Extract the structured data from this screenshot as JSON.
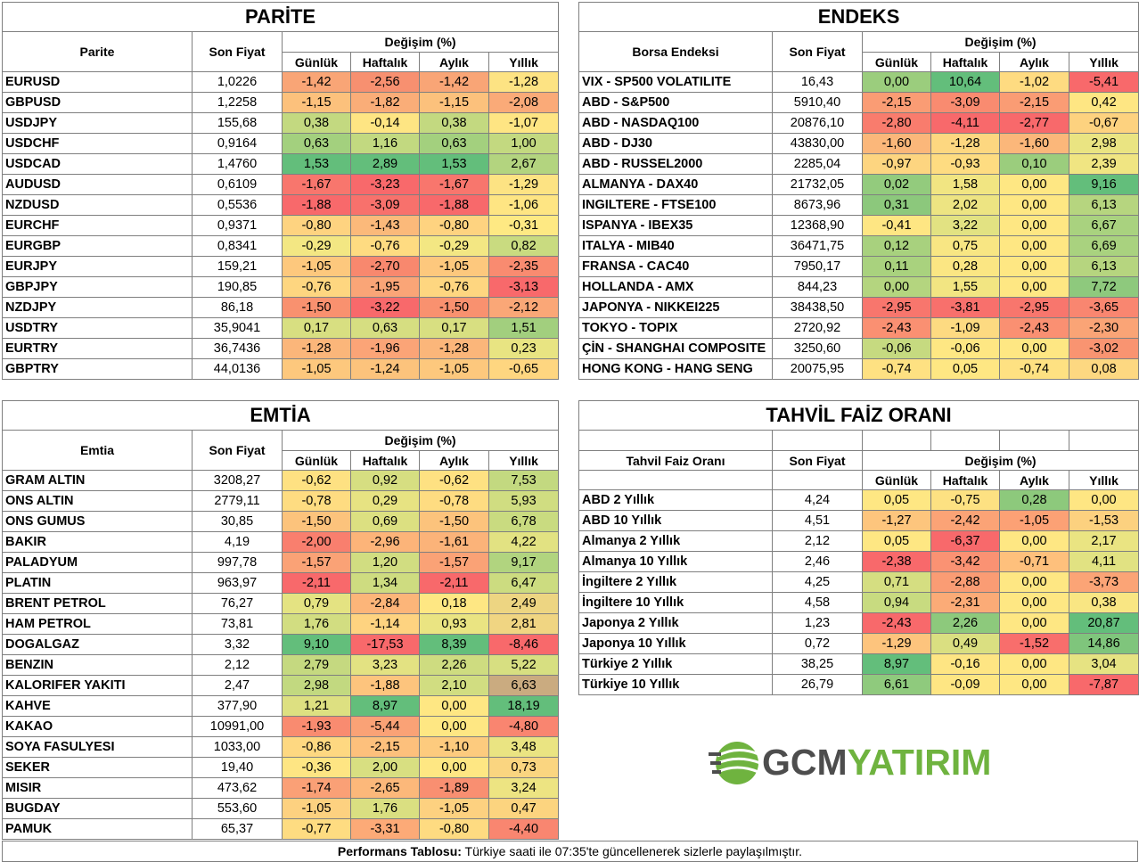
{
  "parite": {
    "title": "PARİTE",
    "col_name": "Parite",
    "col_price": "Son Fiyat",
    "change_header": "Değişim (%)",
    "periods": [
      "Günlük",
      "Haftalık",
      "Aylık",
      "Yıllık"
    ],
    "rows": [
      {
        "name": "EURUSD",
        "price": "1,0226",
        "values": [
          "-1,42",
          "-2,56",
          "-1,42",
          "-1,28"
        ],
        "colors": [
          "#f9a576",
          "#f79070",
          "#f9a576",
          "#fde383"
        ]
      },
      {
        "name": "GBPUSD",
        "price": "1,2258",
        "values": [
          "-1,15",
          "-1,82",
          "-1,15",
          "-2,08"
        ],
        "colors": [
          "#fcc17c",
          "#faad78",
          "#fcc17c",
          "#faaa78"
        ]
      },
      {
        "name": "USDJPY",
        "price": "155,68",
        "values": [
          "0,38",
          "-0,14",
          "0,38",
          "-1,07"
        ],
        "colors": [
          "#c3d980",
          "#fee583",
          "#c3d980",
          "#fee583"
        ]
      },
      {
        "name": "USDCHF",
        "price": "0,9164",
        "values": [
          "0,63",
          "1,16",
          "0,63",
          "1,00"
        ],
        "colors": [
          "#a3d07e",
          "#c2d980",
          "#a3d07e",
          "#c3d980"
        ]
      },
      {
        "name": "USDCAD",
        "price": "1,4760",
        "values": [
          "1,53",
          "2,89",
          "1,53",
          "2,67"
        ],
        "colors": [
          "#63be7b",
          "#63be7b",
          "#63be7b",
          "#b3d47f"
        ]
      },
      {
        "name": "AUDUSD",
        "price": "0,6109",
        "values": [
          "-1,67",
          "-3,23",
          "-1,67",
          "-1,29"
        ],
        "colors": [
          "#f8766d",
          "#f8696b",
          "#f8766d",
          "#fde383"
        ]
      },
      {
        "name": "NZDUSD",
        "price": "0,5536",
        "values": [
          "-1,88",
          "-3,09",
          "-1,88",
          "-1,06"
        ],
        "colors": [
          "#f8696b",
          "#f8716c",
          "#f8696b",
          "#fee583"
        ]
      },
      {
        "name": "EURCHF",
        "price": "0,9371",
        "values": [
          "-0,80",
          "-1,43",
          "-0,80",
          "-0,31"
        ],
        "colors": [
          "#fed380",
          "#fbb97a",
          "#fed380",
          "#fee983"
        ]
      },
      {
        "name": "EURGBP",
        "price": "0,8341",
        "values": [
          "-0,29",
          "-0,76",
          "-0,29",
          "0,82"
        ],
        "colors": [
          "#f3e783",
          "#fedb81",
          "#f3e783",
          "#c9db80"
        ]
      },
      {
        "name": "EURJPY",
        "price": "159,21",
        "values": [
          "-1,05",
          "-2,70",
          "-1,05",
          "-2,35"
        ],
        "colors": [
          "#fdc87d",
          "#f8886e",
          "#fdc87d",
          "#f98b70"
        ]
      },
      {
        "name": "GBPJPY",
        "price": "190,85",
        "values": [
          "-0,76",
          "-1,95",
          "-0,76",
          "-3,13"
        ],
        "colors": [
          "#fed680",
          "#faa577",
          "#fed680",
          "#f8696b"
        ]
      },
      {
        "name": "NZDJPY",
        "price": "86,18",
        "values": [
          "-1,50",
          "-3,22",
          "-1,50",
          "-2,12"
        ],
        "colors": [
          "#f9916f",
          "#f8696b",
          "#f9916f",
          "#faa777"
        ]
      },
      {
        "name": "USDTRY",
        "price": "35,9041",
        "values": [
          "0,17",
          "0,63",
          "0,17",
          "1,51"
        ],
        "colors": [
          "#d8df81",
          "#d6de81",
          "#d8df81",
          "#a2cf7e"
        ]
      },
      {
        "name": "EURTRY",
        "price": "36,7436",
        "values": [
          "-1,28",
          "-1,96",
          "-1,28",
          "0,23"
        ],
        "colors": [
          "#fbb67a",
          "#fba477",
          "#fbb67a",
          "#e8e482"
        ]
      },
      {
        "name": "GBPTRY",
        "price": "44,0136",
        "values": [
          "-1,05",
          "-1,24",
          "-1,05",
          "-0,65"
        ],
        "colors": [
          "#fdc87d",
          "#fcc37c",
          "#fdc87d",
          "#fed680"
        ]
      }
    ]
  },
  "endeks": {
    "title": "ENDEKS",
    "col_name": "Borsa Endeksi",
    "col_price": "Son Fiyat",
    "change_header": "Değişim (%)",
    "periods": [
      "Günlük",
      "Haftalık",
      "Aylık",
      "Yıllık"
    ],
    "rows": [
      {
        "name": "VIX  - SP500 VOLATILITE",
        "price": "16,43",
        "values": [
          "0,00",
          "10,64",
          "-1,02",
          "-5,41"
        ],
        "colors": [
          "#9bcd7d",
          "#63be7b",
          "#fedb81",
          "#f8696b"
        ]
      },
      {
        "name": "ABD - S&P500",
        "price": "5910,40",
        "values": [
          "-2,15",
          "-3,09",
          "-2,15",
          "0,42"
        ],
        "colors": [
          "#fa9c74",
          "#f98b70",
          "#fa9c74",
          "#fee683"
        ]
      },
      {
        "name": "ABD - NASDAQ100",
        "price": "20876,10",
        "values": [
          "-2,80",
          "-4,11",
          "-2,77",
          "-0,67"
        ],
        "colors": [
          "#f97c6d",
          "#f8696b",
          "#f8696b",
          "#fdd27f"
        ]
      },
      {
        "name": "ABD - DJ30",
        "price": "43830,00",
        "values": [
          "-1,60",
          "-1,28",
          "-1,60",
          "2,98"
        ],
        "colors": [
          "#fbb77a",
          "#fdd780",
          "#fbb77a",
          "#eae482"
        ]
      },
      {
        "name": "ABD - RUSSEL2000",
        "price": "2285,04",
        "values": [
          "-0,97",
          "-0,93",
          "0,10",
          "2,39"
        ],
        "colors": [
          "#fdd580",
          "#fedc81",
          "#9bcd7d",
          "#f0e582"
        ]
      },
      {
        "name": "ALMANYA - DAX40",
        "price": "21732,05",
        "values": [
          "0,02",
          "1,58",
          "0,00",
          "9,16"
        ],
        "colors": [
          "#93cb7d",
          "#f1e582",
          "#fee783",
          "#63be7b"
        ]
      },
      {
        "name": "INGILTERE - FTSE100",
        "price": "8673,96",
        "values": [
          "0,31",
          "2,02",
          "0,00",
          "6,13"
        ],
        "colors": [
          "#8cc87c",
          "#ede482",
          "#fee783",
          "#b6d57f"
        ]
      },
      {
        "name": "ISPANYA - IBEX35",
        "price": "12368,90",
        "values": [
          "-0,41",
          "3,22",
          "0,00",
          "6,67"
        ],
        "colors": [
          "#fee683",
          "#e2e282",
          "#fee783",
          "#a9d27f"
        ]
      },
      {
        "name": "ITALYA - MIB40",
        "price": "36471,75",
        "values": [
          "0,12",
          "0,75",
          "0,00",
          "6,69"
        ],
        "colors": [
          "#a8d17e",
          "#f8e683",
          "#fee783",
          "#a9d27f"
        ]
      },
      {
        "name": "FRANSA - CAC40",
        "price": "7950,17",
        "values": [
          "0,11",
          "0,28",
          "0,00",
          "6,13"
        ],
        "colors": [
          "#a9d27e",
          "#fbe683",
          "#fee783",
          "#b6d57f"
        ]
      },
      {
        "name": "HOLLANDA - AMX",
        "price": "844,23",
        "values": [
          "0,00",
          "1,55",
          "0,00",
          "7,72"
        ],
        "colors": [
          "#b4d57f",
          "#f2e582",
          "#fee783",
          "#8ec97d"
        ]
      },
      {
        "name": "JAPONYA - NIKKEI225",
        "price": "38438,50",
        "values": [
          "-2,95",
          "-3,81",
          "-2,95",
          "-3,65"
        ],
        "colors": [
          "#f8766d",
          "#f8706c",
          "#f8766d",
          "#f98670"
        ]
      },
      {
        "name": "TOKYO - TOPIX",
        "price": "2720,92",
        "values": [
          "-2,43",
          "-1,09",
          "-2,43",
          "-2,30"
        ],
        "colors": [
          "#fa9072",
          "#fdda81",
          "#fa9072",
          "#faa476"
        ]
      },
      {
        "name": "ÇİN - SHANGHAI COMPOSITE",
        "price": "3250,60",
        "values": [
          "-0,06",
          "-0,06",
          "0,00",
          "-3,02"
        ],
        "colors": [
          "#c6da80",
          "#fee783",
          "#fee783",
          "#f99471"
        ]
      },
      {
        "name": "HONG KONG - HANG SENG",
        "price": "20075,95",
        "values": [
          "-0,74",
          "0,05",
          "-0,74",
          "0,08"
        ],
        "colors": [
          "#fee182",
          "#fee783",
          "#fee182",
          "#fdd881"
        ]
      }
    ]
  },
  "emtia": {
    "title": "EMTİA",
    "col_name": "Emtia",
    "col_price": "Son Fiyat",
    "change_header": "Değişim (%)",
    "periods": [
      "Günlük",
      "Haftalık",
      "Aylık",
      "Yıllık"
    ],
    "rows": [
      {
        "name": "GRAM ALTIN",
        "price": "3208,27",
        "values": [
          "-0,62",
          "0,92",
          "-0,62",
          "7,53"
        ],
        "colors": [
          "#fee182",
          "#d6de81",
          "#fee182",
          "#c3d980"
        ]
      },
      {
        "name": "ONS ALTIN",
        "price": "2779,11",
        "values": [
          "-0,78",
          "0,29",
          "-0,78",
          "5,93"
        ],
        "colors": [
          "#fedc81",
          "#e7e382",
          "#fedc81",
          "#d0dd81"
        ]
      },
      {
        "name": "ONS GUMUS",
        "price": "30,85",
        "values": [
          "-1,50",
          "0,69",
          "-1,50",
          "6,78"
        ],
        "colors": [
          "#fcc37c",
          "#dce081",
          "#fcc37c",
          "#c9db80"
        ]
      },
      {
        "name": "BAKIR",
        "price": "4,19",
        "values": [
          "-2,00",
          "-2,96",
          "-1,61",
          "4,22"
        ],
        "colors": [
          "#f97f6e",
          "#fcb479",
          "#fbb379",
          "#e2e282"
        ]
      },
      {
        "name": "PALADYUM",
        "price": "997,78",
        "values": [
          "-1,57",
          "1,20",
          "-1,57",
          "9,17"
        ],
        "colors": [
          "#faa276",
          "#d1dd81",
          "#faa276",
          "#b1d47f"
        ]
      },
      {
        "name": "PLATIN",
        "price": "963,97",
        "values": [
          "-2,11",
          "1,34",
          "-2,11",
          "6,47"
        ],
        "colors": [
          "#f8696b",
          "#cedc80",
          "#f8696b",
          "#ccdc80"
        ]
      },
      {
        "name": "BRENT PETROL",
        "price": "76,27",
        "values": [
          "0,79",
          "-2,84",
          "0,18",
          "2,49"
        ],
        "colors": [
          "#e4e382",
          "#fcb579",
          "#fee783",
          "#edd582"
        ]
      },
      {
        "name": "HAM PETROL",
        "price": "73,81",
        "values": [
          "1,76",
          "-1,14",
          "0,93",
          "2,81"
        ],
        "colors": [
          "#d2dd81",
          "#fed380",
          "#eae482",
          "#f0d582"
        ]
      },
      {
        "name": "DOGALGAZ",
        "price": "3,32",
        "values": [
          "9,10",
          "-17,53",
          "8,39",
          "-8,46"
        ],
        "colors": [
          "#63be7b",
          "#f8696b",
          "#63be7b",
          "#f8696b"
        ]
      },
      {
        "name": "BENZIN",
        "price": "2,12",
        "values": [
          "2,79",
          "3,23",
          "2,26",
          "5,22"
        ],
        "colors": [
          "#c5d980",
          "#e3e282",
          "#cedc80",
          "#d7df81"
        ]
      },
      {
        "name": "KALORIFER YAKITI",
        "price": "2,47",
        "values": [
          "2,98",
          "-1,88",
          "2,10",
          "6,63"
        ],
        "colors": [
          "#c2d980",
          "#fdc47d",
          "#d1dd81",
          "#caab80"
        ]
      },
      {
        "name": "KAHVE",
        "price": "377,90",
        "values": [
          "1,21",
          "8,97",
          "0,00",
          "18,19"
        ],
        "colors": [
          "#dde081",
          "#63be7b",
          "#fee783",
          "#63be7b"
        ]
      },
      {
        "name": "KAKAO",
        "price": "10991,00",
        "values": [
          "-1,93",
          "-5,44",
          "0,00",
          "-4,80"
        ],
        "colors": [
          "#f98b70",
          "#faa276",
          "#fee783",
          "#f98570"
        ]
      },
      {
        "name": "SOYA FASULYESI",
        "price": "1033,00",
        "values": [
          "-0,86",
          "-2,15",
          "-1,10",
          "3,48"
        ],
        "colors": [
          "#fed881",
          "#fdc07c",
          "#fdcb7e",
          "#eae482"
        ]
      },
      {
        "name": "SEKER",
        "price": "19,40",
        "values": [
          "-0,36",
          "2,00",
          "0,00",
          "0,73"
        ],
        "colors": [
          "#fee583",
          "#d8df81",
          "#fee783",
          "#fad580"
        ]
      },
      {
        "name": "MISIR",
        "price": "473,62",
        "values": [
          "-1,74",
          "-2,65",
          "-1,89",
          "3,24"
        ],
        "colors": [
          "#faa076",
          "#fcb87a",
          "#f98f71",
          "#ede482"
        ]
      },
      {
        "name": "BUGDAY",
        "price": "553,60",
        "values": [
          "-1,05",
          "1,76",
          "-1,05",
          "0,47"
        ],
        "colors": [
          "#fdd180",
          "#dadf81",
          "#fdd180",
          "#fcd47f"
        ]
      },
      {
        "name": "PAMUK",
        "price": "65,37",
        "values": [
          "-0,77",
          "-3,31",
          "-0,80",
          "-4,40"
        ],
        "colors": [
          "#fedc81",
          "#fcaa77",
          "#fedb81",
          "#f98670"
        ]
      }
    ]
  },
  "tahvil": {
    "title": "TAHVİL FAİZ ORANI",
    "col_name": "Tahvil Faiz Oranı",
    "col_price": "Son Fiyat",
    "change_header": "Değişim (%)",
    "periods": [
      "Günlük",
      "Haftalık",
      "Aylık",
      "Yıllık"
    ],
    "rows": [
      {
        "name": "ABD 2 Yıllık",
        "price": "4,24",
        "values": [
          "0,05",
          "-0,75",
          "0,28",
          "0,00"
        ],
        "colors": [
          "#fee783",
          "#fde182",
          "#8dc97c",
          "#fee683"
        ]
      },
      {
        "name": "ABD 10 Yıllık",
        "price": "4,51",
        "values": [
          "-1,27",
          "-2,42",
          "-1,05",
          "-1,53"
        ],
        "colors": [
          "#fdc57d",
          "#fba376",
          "#fca175",
          "#fcd17f"
        ]
      },
      {
        "name": "Almanya 2 Yıllık",
        "price": "2,12",
        "values": [
          "0,05",
          "-6,37",
          "0,00",
          "2,17"
        ],
        "colors": [
          "#fee783",
          "#f8696b",
          "#fee783",
          "#eae482"
        ]
      },
      {
        "name": "Almanya 10 Yıllık",
        "price": "2,46",
        "values": [
          "-2,38",
          "-3,42",
          "-0,71",
          "4,11"
        ],
        "colors": [
          "#f8696b",
          "#fa9273",
          "#fec07c",
          "#e1e282"
        ]
      },
      {
        "name": "İngiltere 2 Yıllık",
        "price": "4,25",
        "values": [
          "0,71",
          "-2,88",
          "0,00",
          "-3,73"
        ],
        "colors": [
          "#d5de81",
          "#fa9c74",
          "#fee783",
          "#fba476"
        ]
      },
      {
        "name": "İngiltere 10 Yıllık",
        "price": "4,58",
        "values": [
          "0,94",
          "-2,31",
          "0,00",
          "0,38"
        ],
        "colors": [
          "#c8db80",
          "#fbab77",
          "#fee783",
          "#f9e683"
        ]
      },
      {
        "name": "Japonya 2 Yıllık",
        "price": "1,23",
        "values": [
          "-2,43",
          "2,26",
          "0,00",
          "20,87"
        ],
        "colors": [
          "#f8696b",
          "#8dc97c",
          "#fee783",
          "#63be7b"
        ]
      },
      {
        "name": "Japonya 10 Yıllık",
        "price": "0,72",
        "values": [
          "-1,29",
          "0,49",
          "-1,52",
          "14,86"
        ],
        "colors": [
          "#fdc47d",
          "#dadf81",
          "#f86e6c",
          "#7fc57c"
        ]
      },
      {
        "name": "Türkiye 2 Yıllık",
        "price": "38,25",
        "values": [
          "8,97",
          "-0,16",
          "0,00",
          "3,04"
        ],
        "colors": [
          "#63be7b",
          "#fee583",
          "#fee783",
          "#e6e382"
        ]
      },
      {
        "name": "Türkiye 10 Yıllık",
        "price": "26,79",
        "values": [
          "6,61",
          "-0,09",
          "0,00",
          "-7,87"
        ],
        "colors": [
          "#8fca7d",
          "#fee683",
          "#fee783",
          "#f8696b"
        ]
      }
    ]
  },
  "logo": {
    "part1": "GCM",
    "part2": "YATIRIM"
  },
  "footer": {
    "label": "Performans Tablosu:",
    "text": " Türkiye saati ile 07:35'te güncellenerek sizlerle paylaşılmıştır."
  }
}
